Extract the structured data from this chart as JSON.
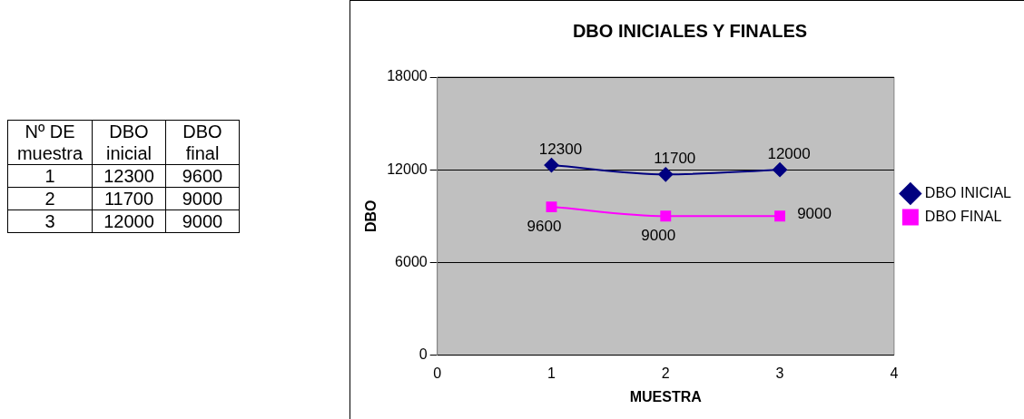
{
  "chart_data": [
    {
      "type": "other",
      "xlabel": "Nº DE muestra",
      "categories": [
        "1",
        "2",
        "3"
      ],
      "series": [
        {
          "name": "DBO inicial",
          "values": [
            12300,
            11700,
            12000
          ]
        },
        {
          "name": "DBO final",
          "values": [
            9600,
            9000,
            9000
          ]
        }
      ],
      "data_labels": true
    },
    {
      "type": "line",
      "title": "DBO INICIALES Y FINALES",
      "xlabel": "MUESTRA",
      "ylabel": "DBO",
      "x": [
        1,
        2,
        3
      ],
      "series": [
        {
          "name": "DBO INICIAL",
          "color": "#000080",
          "marker": "diamond",
          "values": [
            12300,
            11700,
            12000
          ]
        },
        {
          "name": "DBO FINAL",
          "color": "#ff00ff",
          "marker": "square",
          "values": [
            9600,
            9000,
            9000
          ]
        }
      ],
      "xlim": [
        0,
        4
      ],
      "xticks": [
        0,
        1,
        2,
        3,
        4
      ],
      "ylim": [
        0,
        18000
      ],
      "yticks": [
        0,
        6000,
        12000,
        18000
      ],
      "grid": "y",
      "legend": "right",
      "data_labels": true
    }
  ]
}
